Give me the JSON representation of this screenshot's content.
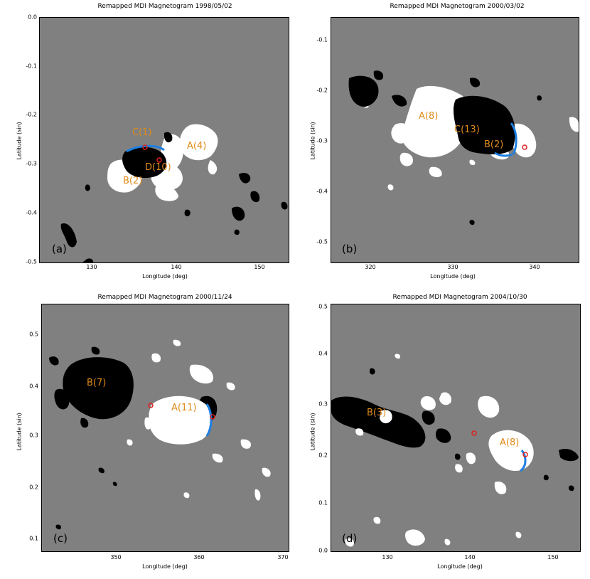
{
  "panels": [
    {
      "title": "Remapped MDI Magnetogram 1998/05/02",
      "ylabel": "Latitude (sin)",
      "xlabel": "Longitude (deg)",
      "yticks": [
        "0.0",
        "-0.1",
        "-0.2",
        "-0.3",
        "-0.4",
        "-0.5"
      ],
      "xticks": [
        "130",
        "140",
        "150"
      ],
      "panel_label": "(a)",
      "regions": [
        "C(1)",
        "A(4)",
        "D(10)",
        "B(2)"
      ]
    },
    {
      "title": "Remapped MDI Magnetogram 2000/03/02",
      "ylabel": "Latitude (sin)",
      "xlabel": "Longitude (deg)",
      "yticks": [
        "-0.1",
        "-0.2",
        "-0.3",
        "-0.4",
        "-0.5"
      ],
      "xticks": [
        "320",
        "330",
        "340"
      ],
      "panel_label": "(b)",
      "regions": [
        "A(8)",
        "C(13)",
        "B(2)"
      ]
    },
    {
      "title": "Remapped MDI Magnetogram 2000/11/24",
      "ylabel": "Latitude (sin)",
      "xlabel": "Longitude (deg)",
      "yticks": [
        "0.5",
        "0.4",
        "0.3",
        "0.2",
        "0.1"
      ],
      "xticks": [
        "350",
        "360",
        "370"
      ],
      "panel_label": "(c)",
      "regions": [
        "B(7)",
        "A(11)"
      ]
    },
    {
      "title": "Remapped MDI Magnetogram 2004/10/30",
      "ylabel": "Latitude (sin)",
      "xlabel": "Longitude (deg)",
      "yticks": [
        "0.5",
        "0.4",
        "0.3",
        "0.2",
        "0.1",
        "0.0"
      ],
      "xticks": [
        "130",
        "140",
        "150"
      ],
      "panel_label": "(d)",
      "regions": [
        "B(3)",
        "A(8)"
      ]
    }
  ],
  "colors": {
    "background": "#808080",
    "positive": "#ffffff",
    "negative": "#000000",
    "neutral_line": "#1e7fe0",
    "region_label": "#e08b1a",
    "marker": "#e02020"
  }
}
